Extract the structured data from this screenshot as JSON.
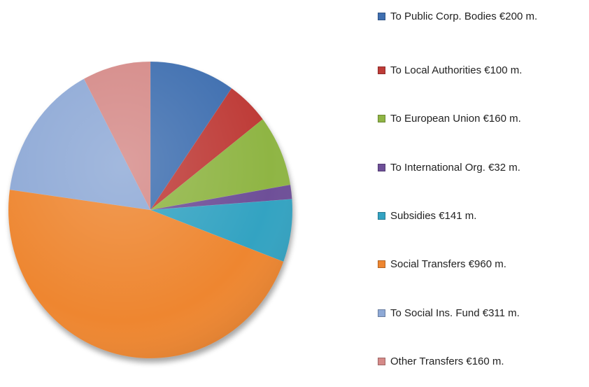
{
  "chart_data": {
    "type": "pie",
    "categories": [
      "To Public Corp. Bodies €200 m.",
      "To Local Authorities €100 m.",
      "To European Union €160 m.",
      "To International Org. €32 m.",
      "Subsidies €141 m.",
      "Social Transfers €960 m.",
      "To Social Ins. Fund €311 m.",
      "Other Transfers €160 m."
    ],
    "values": [
      200,
      100,
      160,
      32,
      141,
      960,
      311,
      160
    ],
    "colors": [
      "#3f6fb0",
      "#be3b37",
      "#8fb544",
      "#6e4f98",
      "#33a3c2",
      "#ee8630",
      "#8ea9d6",
      "#d58a88"
    ],
    "legend": "right"
  }
}
